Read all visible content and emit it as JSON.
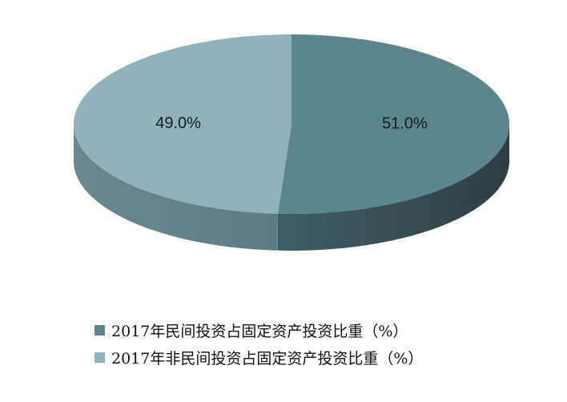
{
  "chart_data": {
    "type": "pie",
    "style": "3d",
    "slices": [
      {
        "label": "2017年民间投资占固定资产投资比重（%）",
        "value": 51.0,
        "display": "51.0%",
        "color": "#5b8690"
      },
      {
        "label": "2017年非民间投资占固定资产投资比重（%）",
        "value": 49.0,
        "display": "49.0%",
        "color": "#8fb3bd"
      }
    ],
    "legend_position": "bottom"
  }
}
